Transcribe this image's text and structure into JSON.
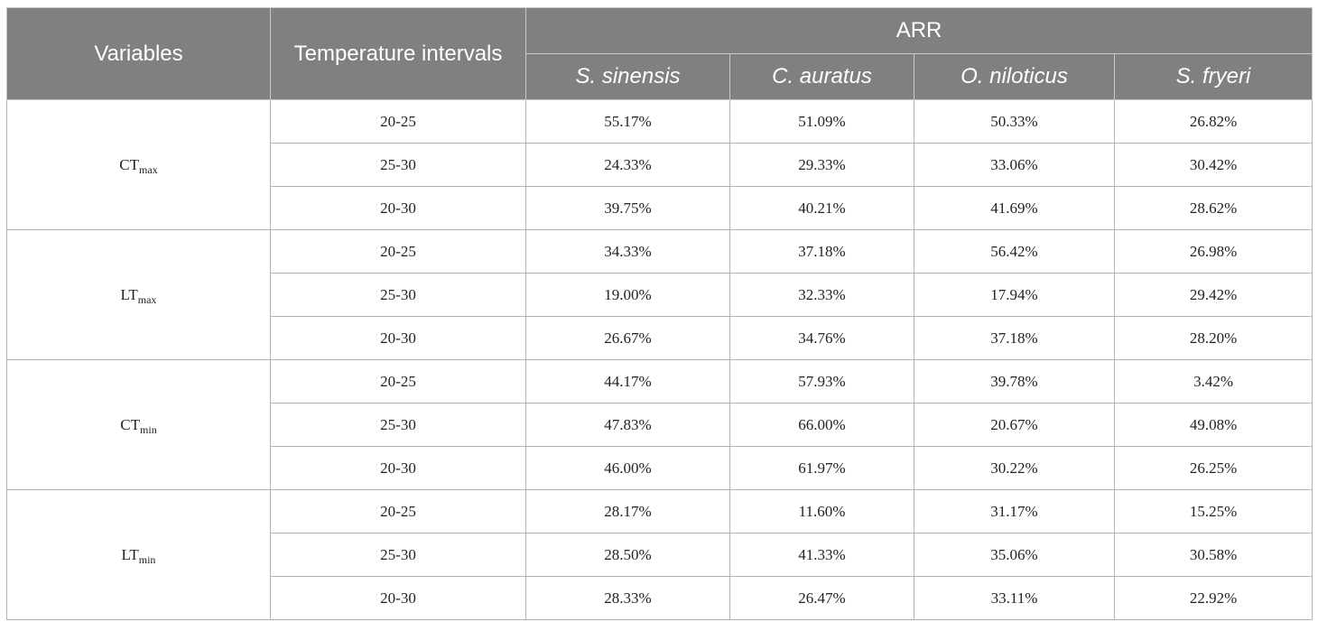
{
  "header": {
    "variables": "Variables",
    "temperature_intervals": "Temperature intervals",
    "arr": "ARR",
    "species": [
      "S. sinensis",
      "C. auratus",
      "O. niloticus",
      "S. fryeri"
    ]
  },
  "groups": [
    {
      "var_main": "CT",
      "var_sub": "max",
      "rows": [
        {
          "interval": "20-25",
          "values": [
            "55.17%",
            "51.09%",
            "50.33%",
            "26.82%"
          ]
        },
        {
          "interval": "25-30",
          "values": [
            "24.33%",
            "29.33%",
            "33.06%",
            "30.42%"
          ]
        },
        {
          "interval": "20-30",
          "values": [
            "39.75%",
            "40.21%",
            "41.69%",
            "28.62%"
          ]
        }
      ]
    },
    {
      "var_main": "LT",
      "var_sub": "max",
      "rows": [
        {
          "interval": "20-25",
          "values": [
            "34.33%",
            "37.18%",
            "56.42%",
            "26.98%"
          ]
        },
        {
          "interval": "25-30",
          "values": [
            "19.00%",
            "32.33%",
            "17.94%",
            "29.42%"
          ]
        },
        {
          "interval": "20-30",
          "values": [
            "26.67%",
            "34.76%",
            "37.18%",
            "28.20%"
          ]
        }
      ]
    },
    {
      "var_main": "CT",
      "var_sub": "min",
      "rows": [
        {
          "interval": "20-25",
          "values": [
            "44.17%",
            "57.93%",
            "39.78%",
            "3.42%"
          ]
        },
        {
          "interval": "25-30",
          "values": [
            "47.83%",
            "66.00%",
            "20.67%",
            "49.08%"
          ]
        },
        {
          "interval": "20-30",
          "values": [
            "46.00%",
            "61.97%",
            "30.22%",
            "26.25%"
          ]
        }
      ]
    },
    {
      "var_main": "LT",
      "var_sub": "min",
      "rows": [
        {
          "interval": "20-25",
          "values": [
            "28.17%",
            "11.60%",
            "31.17%",
            "15.25%"
          ]
        },
        {
          "interval": "25-30",
          "values": [
            "28.50%",
            "41.33%",
            "35.06%",
            "30.58%"
          ]
        },
        {
          "interval": "20-30",
          "values": [
            "28.33%",
            "26.47%",
            "33.11%",
            "22.92%"
          ]
        }
      ]
    }
  ]
}
